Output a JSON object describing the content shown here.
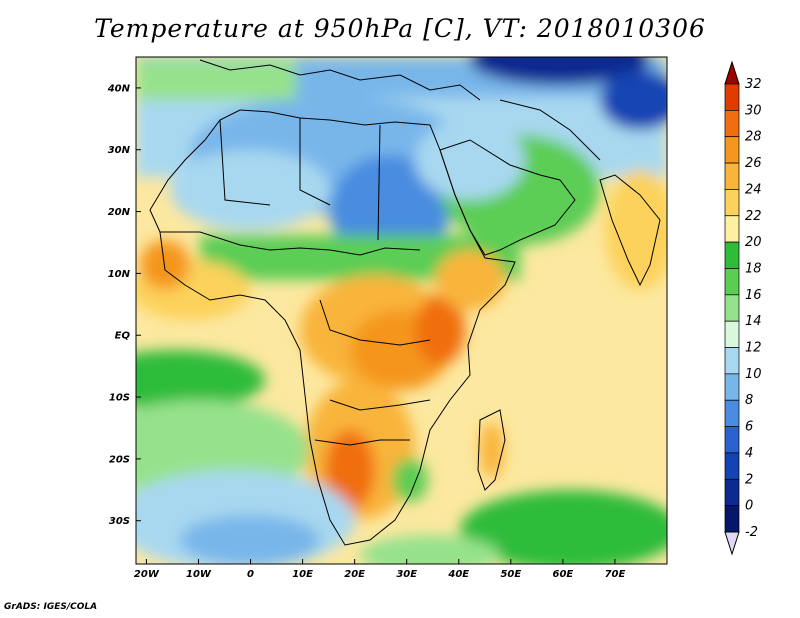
{
  "title": "Temperature at 950hPa [C], VT: 2018010306",
  "footer": "GrADS: IGES/COLA",
  "map": {
    "region": "Africa, Arabian Peninsula and western Indian Ocean",
    "lon_range": [
      -22,
      80
    ],
    "lat_range": [
      -37,
      45
    ],
    "lon_ticks": [
      "20W",
      "10W",
      "0",
      "10E",
      "20E",
      "30E",
      "40E",
      "50E",
      "60E",
      "70E"
    ],
    "lat_ticks": [
      "40N",
      "30N",
      "20N",
      "10N",
      "EQ",
      "10S",
      "20S",
      "30S"
    ]
  },
  "colorbar": {
    "levels": [
      "32",
      "30",
      "28",
      "26",
      "24",
      "22",
      "20",
      "18",
      "16",
      "14",
      "12",
      "10",
      "8",
      "6",
      "4",
      "2",
      "0",
      "-2"
    ],
    "colors": [
      "#a00000",
      "#e03c00",
      "#f06e10",
      "#f5961e",
      "#f9b43a",
      "#fcd25c",
      "#fdf0a0",
      "#2fbc3a",
      "#5ccd54",
      "#96e28c",
      "#d8f7dc",
      "#a8d8f0",
      "#78b6ea",
      "#4a8ce0",
      "#2a62d0",
      "#1444b4",
      "#0c2a90",
      "#06166a",
      "#e0d8f4"
    ]
  }
}
